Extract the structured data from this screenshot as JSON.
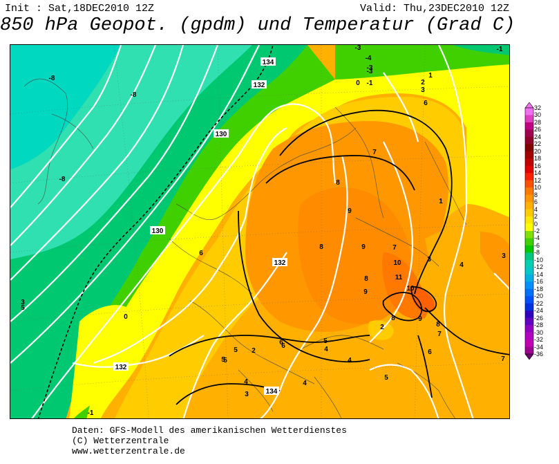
{
  "header": {
    "init": "Init : Sat,18DEC2010 12Z",
    "valid": "Valid: Thu,23DEC2010 12Z",
    "title": "850 hPa Geopot. (gpdm) und Temperatur (Grad C)"
  },
  "footer": {
    "line1": "Daten: GFS-Modell des amerikanischen Wetterdienstes",
    "line2": "(C) Wetterzentrale",
    "line3": "www.wetterzentrale.de"
  },
  "legend": {
    "ticks": [
      "32",
      "30",
      "28",
      "26",
      "24",
      "22",
      "20",
      "18",
      "16",
      "14",
      "12",
      "10",
      "8",
      "6",
      "4",
      "2",
      "0",
      "-2",
      "-4",
      "-6",
      "-8",
      "-10",
      "-12",
      "-14",
      "-16",
      "-18",
      "-20",
      "-22",
      "-24",
      "-26",
      "-28",
      "-30",
      "-32",
      "-34",
      "-36"
    ],
    "colors": [
      "#f070f0",
      "#e040c0",
      "#c00080",
      "#a00050",
      "#900028",
      "#800000",
      "#a00000",
      "#c00000",
      "#e00000",
      "#ff2000",
      "#ff5000",
      "#ff7800",
      "#ff9800",
      "#ffb000",
      "#ffcc00",
      "#ffe800",
      "#ffff00",
      "#80e000",
      "#40d000",
      "#00c800",
      "#00c880",
      "#00d0b0",
      "#00c8c8",
      "#00b0e0",
      "#0090ff",
      "#0070ff",
      "#0050ff",
      "#0030e0",
      "#3000c0",
      "#6000c0",
      "#9000c0",
      "#b000c0",
      "#c000b0",
      "#a00090",
      "#700070"
    ]
  },
  "map": {
    "geopotential_labels": [
      "134",
      "132",
      "130",
      "130",
      "132",
      "132",
      "134"
    ],
    "temperature_labels": [
      "-1",
      "-3",
      "-4",
      "-3",
      "-3",
      "0",
      "-1",
      "-8",
      "-8",
      "-8",
      "1",
      "2",
      "3",
      "6",
      "7",
      "8",
      "9",
      "8",
      "9",
      "7",
      "10",
      "11",
      "10",
      "9",
      "8",
      "3",
      "4",
      "3",
      "1",
      "2",
      "8",
      "8",
      "7",
      "6",
      "9",
      "0",
      "3",
      "5",
      "6",
      "6",
      "5",
      "4",
      "4",
      "5",
      "4",
      "3",
      "4",
      "5",
      "5",
      "5",
      "6",
      "7",
      "2",
      "-1"
    ],
    "colors": {
      "sea_green": "#00c870",
      "teal": "#30e0b0",
      "lime": "#40d000",
      "yellow": "#ffff00",
      "gold": "#ffcc00",
      "orange": "#ffb000",
      "deep_orange": "#ff9800",
      "dark_orange": "#ff7800"
    }
  }
}
